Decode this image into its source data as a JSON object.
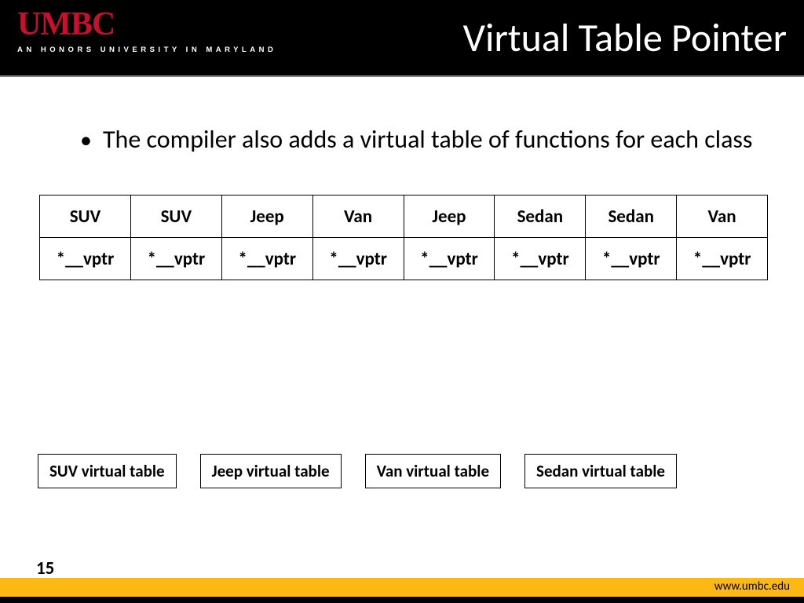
{
  "header": {
    "logo_main": "UMBC",
    "logo_sub": "AN HONORS UNIVERSITY IN MARYLAND",
    "title": "Virtual Table Pointer",
    "logo_color": "#c8102e",
    "bg_color": "#000000"
  },
  "bullet": {
    "text": "The compiler also adds a virtual table of functions for each class"
  },
  "main_table": {
    "type": "table",
    "columns_count": 8,
    "border_color": "#000000",
    "font_size": 23,
    "font_weight": "bold",
    "rows": [
      [
        "SUV",
        "SUV",
        "Jeep",
        "Van",
        "Jeep",
        "Sedan",
        "Sedan",
        "Van"
      ],
      [
        "*__vptr",
        "*__vptr",
        "*__vptr",
        "*__vptr",
        "*__vptr",
        "*__vptr",
        "*__vptr",
        "*__vptr"
      ]
    ]
  },
  "vtables": {
    "items": [
      "SUV virtual table",
      "Jeep virtual table",
      "Van virtual table",
      "Sedan virtual table"
    ],
    "border_color": "#000000",
    "font_size": 21,
    "font_weight": "bold"
  },
  "footer": {
    "page_number": "15",
    "url": "www.umbc.edu",
    "yellow": "#fdb913",
    "black": "#000000"
  }
}
